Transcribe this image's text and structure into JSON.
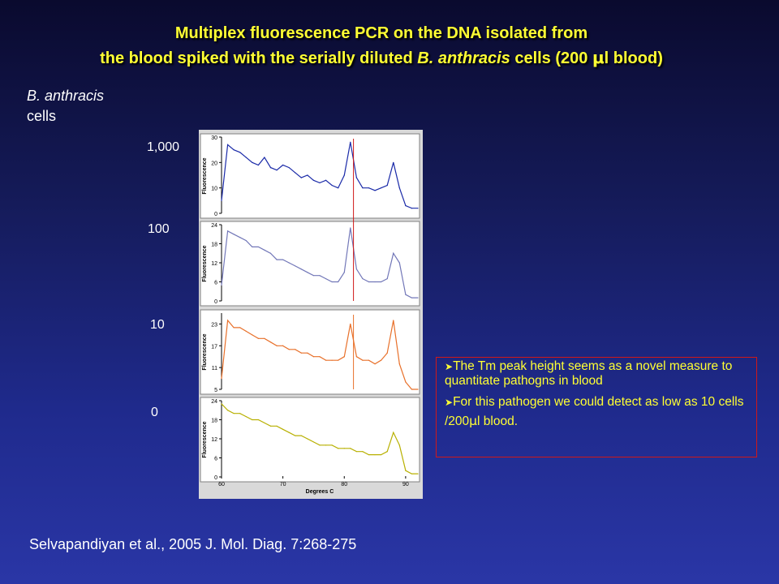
{
  "slide": {
    "title_line1": "Multiplex fluorescence PCR on the DNA isolated from",
    "title_line2_pre": "the blood spiked with the serially diluted ",
    "title_line2_species": "B. anthracis",
    "title_line2_post_a": " cells (200 ",
    "title_line2_mu": "μ",
    "title_line2_post_b": "l blood)",
    "subject_species": "B. anthracis",
    "subject_word": "cells",
    "row_labels": [
      "1,000",
      "100",
      "10",
      "0"
    ],
    "notes": {
      "bullet1": "The Tm peak height seems as a novel measure to quantitate pathogns in blood",
      "bullet2_pre": "For this pathogen we could detect as low as 10 cells /200",
      "bullet2_mu": "μ",
      "bullet2_post": "l blood."
    },
    "citation": "Selvapandiyan et al., 2005 J. Mol. Diag. 7:268-275",
    "colors": {
      "title": "#ffff33",
      "panel_1000": "#1a2aa8",
      "panel_100": "#7277b8",
      "panel_10": "#e8702a",
      "panel_0": "#b8b000",
      "tm_line": "#d01818"
    }
  },
  "chart_data": {
    "type": "line",
    "xlabel": "Degrees C",
    "x_ticks": [
      "60",
      "70",
      "80",
      "90"
    ],
    "xlim": [
      60,
      92
    ],
    "panels": [
      {
        "dilution": "1,000",
        "ylabel": "Fluorescence",
        "y_ticks": [
          "30",
          "20",
          "10",
          "0"
        ],
        "ylim": [
          0,
          30
        ],
        "x": [
          60,
          61,
          62,
          63,
          64,
          65,
          66,
          67,
          68,
          69,
          70,
          71,
          72,
          73,
          74,
          75,
          76,
          77,
          78,
          79,
          80,
          81,
          82,
          83,
          84,
          85,
          86,
          87,
          88,
          89,
          90,
          91,
          92
        ],
        "y": [
          5,
          27,
          25,
          24,
          22,
          20,
          19,
          22,
          18,
          17,
          19,
          18,
          16,
          14,
          15,
          13,
          12,
          13,
          11,
          10,
          15,
          28,
          14,
          10,
          10,
          9,
          10,
          11,
          20,
          10,
          3,
          2,
          2
        ]
      },
      {
        "dilution": "100",
        "ylabel": "Fluorescence",
        "y_ticks": [
          "24",
          "18",
          "12",
          "6",
          "0"
        ],
        "ylim": [
          0,
          24
        ],
        "x": [
          60,
          61,
          62,
          63,
          64,
          65,
          66,
          67,
          68,
          69,
          70,
          71,
          72,
          73,
          74,
          75,
          76,
          77,
          78,
          79,
          80,
          81,
          82,
          83,
          84,
          85,
          86,
          87,
          88,
          89,
          90,
          91,
          92
        ],
        "y": [
          5,
          22,
          21,
          20,
          19,
          17,
          17,
          16,
          15,
          13,
          13,
          12,
          11,
          10,
          9,
          8,
          8,
          7,
          6,
          6,
          9,
          23,
          10,
          7,
          6,
          6,
          6,
          7,
          15,
          12,
          2,
          1,
          1
        ]
      },
      {
        "dilution": "10",
        "ylabel": "Fluorescence",
        "y_ticks": [
          "23",
          "17",
          "11",
          "5"
        ],
        "ylim": [
          5,
          26
        ],
        "x": [
          60,
          61,
          62,
          63,
          64,
          65,
          66,
          67,
          68,
          69,
          70,
          71,
          72,
          73,
          74,
          75,
          76,
          77,
          78,
          79,
          80,
          81,
          82,
          83,
          84,
          85,
          86,
          87,
          88,
          89,
          90,
          91,
          92
        ],
        "y": [
          8,
          24,
          22,
          22,
          21,
          20,
          19,
          19,
          18,
          17,
          17,
          16,
          16,
          15,
          15,
          14,
          14,
          13,
          13,
          13,
          14,
          23,
          14,
          13,
          13,
          12,
          13,
          15,
          24,
          12,
          7,
          5,
          5
        ]
      },
      {
        "dilution": "0",
        "ylabel": "Fluorescence",
        "y_ticks": [
          "24",
          "18",
          "12",
          "6",
          "0"
        ],
        "ylim": [
          0,
          24
        ],
        "x": [
          60,
          61,
          62,
          63,
          64,
          65,
          66,
          67,
          68,
          69,
          70,
          71,
          72,
          73,
          74,
          75,
          76,
          77,
          78,
          79,
          80,
          81,
          82,
          83,
          84,
          85,
          86,
          87,
          88,
          89,
          90,
          91,
          92
        ],
        "y": [
          23,
          21,
          20,
          20,
          19,
          18,
          18,
          17,
          16,
          16,
          15,
          14,
          13,
          13,
          12,
          11,
          10,
          10,
          10,
          9,
          9,
          9,
          8,
          8,
          7,
          7,
          7,
          8,
          14,
          10,
          2,
          1,
          1
        ]
      }
    ],
    "tm_marker_x": 81.5
  }
}
